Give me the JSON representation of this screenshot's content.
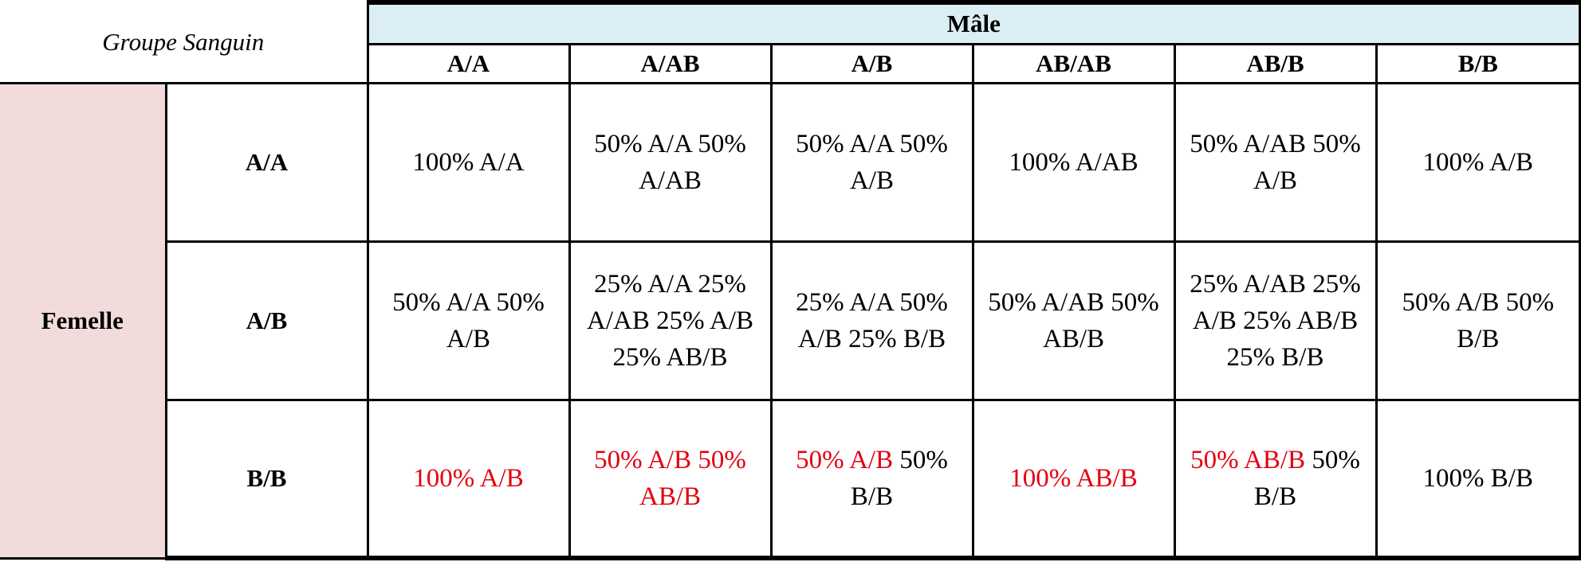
{
  "table": {
    "corner_label": "Groupe Sanguin",
    "male_label": "Mâle",
    "female_label": "Femelle",
    "columns": [
      "A/A",
      "A/AB",
      "A/B",
      "AB/AB",
      "AB/B",
      "B/B"
    ],
    "rows": [
      {
        "label": "A/A",
        "cells": [
          {
            "red": "",
            "black": "100% A/A"
          },
          {
            "red": "",
            "black": "50% A/A   50% A/AB"
          },
          {
            "red": "",
            "black": "50% A/A  50% A/B"
          },
          {
            "red": "",
            "black": "100% A/AB"
          },
          {
            "red": "",
            "black": "50% A/AB 50% A/B"
          },
          {
            "red": "",
            "black": "100% A/B"
          }
        ]
      },
      {
        "label": "A/B",
        "cells": [
          {
            "red": "",
            "black": "50% A/A 50% A/B"
          },
          {
            "red": "",
            "black": "25% A/A 25% A/AB 25%  A/B 25% AB/B"
          },
          {
            "red": "",
            "black": "25% A/A 50% A/B 25% B/B"
          },
          {
            "red": "",
            "black": "50% A/AB 50% AB/B"
          },
          {
            "red": "",
            "black": "25% A/AB 25% A/B 25% AB/B 25% B/B"
          },
          {
            "red": "",
            "black": "50% A/B 50% B/B"
          }
        ]
      },
      {
        "label": "B/B",
        "cells": [
          {
            "red": "100% A/B",
            "black": ""
          },
          {
            "red": "50% A/B 50% AB/B",
            "black": ""
          },
          {
            "red": "50% A/B",
            "black": " 50% B/B"
          },
          {
            "red": "100% AB/B",
            "black": ""
          },
          {
            "red": "50% AB/B",
            "black": " 50% B/B"
          },
          {
            "red": "",
            "black": "100% B/B"
          }
        ]
      }
    ],
    "colors": {
      "male_header_bg": "#daeef3",
      "female_label_bg": "#f2dcdb",
      "highlight_text": "#e3000f"
    }
  }
}
